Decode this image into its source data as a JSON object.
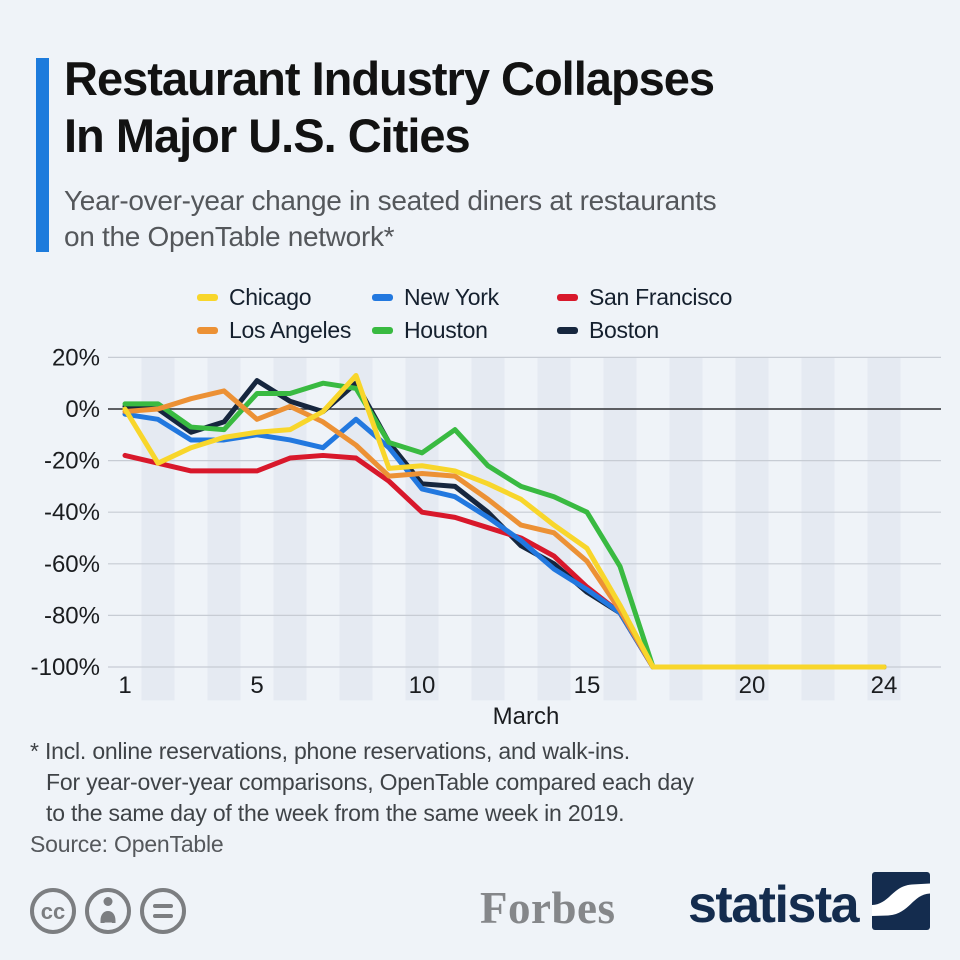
{
  "header": {
    "title_line1": "Restaurant Industry Collapses",
    "title_line2": "In Major U.S. Cities",
    "subtitle_line1": "Year-over-year change in seated diners at restaurants",
    "subtitle_line2": "on the OpenTable network*"
  },
  "chart_data": {
    "type": "line",
    "x": [
      1,
      2,
      3,
      4,
      5,
      6,
      7,
      8,
      9,
      10,
      11,
      12,
      13,
      14,
      15,
      16,
      17,
      18,
      19,
      20,
      21,
      22,
      23,
      24
    ],
    "x_ticks": [
      1,
      5,
      10,
      15,
      20,
      24
    ],
    "xlabel": "March",
    "y_ticks_percent": [
      20,
      0,
      -20,
      -40,
      -60,
      -80,
      -100
    ],
    "ylim": [
      -100,
      20
    ],
    "grid": "horizontal",
    "legend_position": "top",
    "series": [
      {
        "name": "Chicago",
        "color": "#F8D62B",
        "values": [
          0,
          -21,
          -15,
          -11,
          -9,
          -8,
          -1,
          13,
          -23,
          -22,
          -24,
          -29,
          -35,
          -45,
          -54,
          -76,
          -100,
          -100,
          -100,
          -100,
          -100,
          -100,
          -100,
          -100
        ]
      },
      {
        "name": "Los Angeles",
        "color": "#EC9135",
        "values": [
          -1,
          0,
          4,
          7,
          -4,
          1,
          -5,
          -14,
          -26,
          -25,
          -26,
          -35,
          -45,
          -48,
          -59,
          -78,
          -100,
          -100,
          -100,
          -100,
          -100,
          -100,
          -100,
          -100
        ]
      },
      {
        "name": "New York",
        "color": "#2278DF",
        "values": [
          -2,
          -4,
          -12,
          -12,
          -10,
          -12,
          -15,
          -4,
          -15,
          -31,
          -34,
          -42,
          -51,
          -62,
          -70,
          -79,
          -100,
          -100,
          -100,
          -100,
          -100,
          -100,
          -100,
          -100
        ]
      },
      {
        "name": "Houston",
        "color": "#39BA41",
        "values": [
          2,
          2,
          -7,
          -8,
          6,
          6,
          10,
          8,
          -13,
          -17,
          -8,
          -22,
          -30,
          -34,
          -40,
          -61,
          -100,
          -100,
          -100,
          -100,
          -100,
          -100,
          -100,
          -100
        ]
      },
      {
        "name": "San Francisco",
        "color": "#D8182B",
        "values": [
          -18,
          -21,
          -24,
          -24,
          -24,
          -19,
          -18,
          -19,
          -28,
          -40,
          -42,
          -46,
          -50,
          -57,
          -69,
          -79,
          -100,
          -100,
          -100,
          -100,
          -100,
          -100,
          -100,
          -100
        ]
      },
      {
        "name": "Boston",
        "color": "#16263E",
        "values": [
          1,
          0,
          -9,
          -5,
          11,
          3,
          -1,
          10,
          -13,
          -29,
          -30,
          -40,
          -53,
          -60,
          -71,
          -79,
          -100,
          -100,
          -100,
          -100,
          -100,
          -100,
          -100,
          -100
        ]
      }
    ]
  },
  "footnote": {
    "line1": "* Incl. online reservations, phone reservations, and walk-ins.",
    "line2": "For year-over-year comparisons, OpenTable compared each day",
    "line3": "to the same day of the week from the same week in 2019."
  },
  "source": "Source: OpenTable",
  "branding": {
    "publisher": "Forbes",
    "provider": "statista"
  },
  "colors": {
    "accent": "#1D7BDC",
    "background": "#EFF3F8",
    "stripe": "#E5EAF2",
    "grid": "#C7CCD4",
    "zero_line": "#2F3033",
    "statista_navy": "#142C4E",
    "forbes_gray": "#85878A",
    "license_gray": "#7C7E81"
  }
}
